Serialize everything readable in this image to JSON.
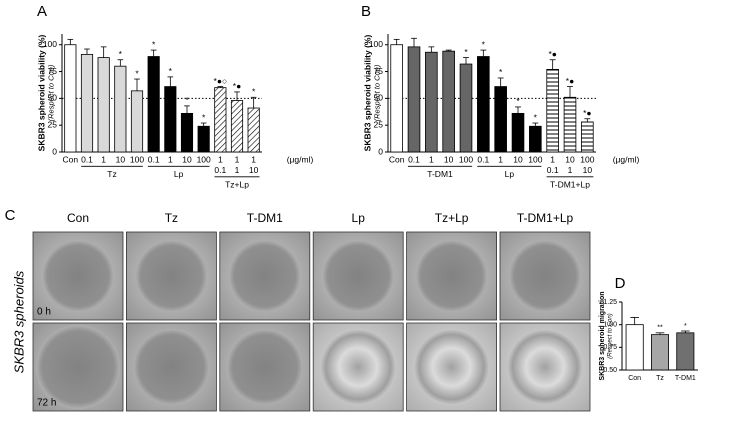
{
  "chart_data": [
    {
      "type": "bar",
      "panel_label": "A",
      "ylabel": "SKBR3 spheroid viability (%)",
      "ysublabel": "(Respect to Con)",
      "unit": "(μg/ml)",
      "ylim": [
        0,
        110
      ],
      "yticks": [
        0,
        25,
        50,
        75,
        100
      ],
      "reference_line": 50,
      "groups": [
        {
          "categories": [
            "Con"
          ],
          "values": [
            100
          ],
          "errors": [
            5
          ],
          "annotations": [
            null
          ],
          "color": "#ffffff"
        },
        {
          "name": "Tz",
          "categories": [
            "0.1",
            "1",
            "10",
            "100"
          ],
          "values": [
            91,
            88,
            80,
            57
          ],
          "errors": [
            5,
            10,
            6,
            11
          ],
          "annotations": [
            null,
            null,
            "*",
            "*"
          ],
          "color": "#d9d9d9"
        },
        {
          "name": "Lp",
          "categories": [
            "0.1",
            "1",
            "10",
            "100"
          ],
          "values": [
            89,
            61,
            36,
            24
          ],
          "errors": [
            6,
            9,
            7,
            3
          ],
          "annotations": [
            "*",
            "*",
            "*",
            "*"
          ],
          "color": "#000000"
        },
        {
          "name": "Tz+Lp",
          "categories": [
            [
              "1",
              "0.1"
            ],
            [
              "1",
              "1"
            ],
            [
              "1",
              "10"
            ]
          ],
          "values": [
            60,
            48,
            41
          ],
          "errors": [
            1,
            8,
            10
          ],
          "annotations": [
            "*●○",
            "*●",
            "*"
          ],
          "color": "#ffffff",
          "pattern": "diagonal"
        }
      ]
    },
    {
      "type": "bar",
      "panel_label": "B",
      "ylabel": "SKBR3 spheroid viability (%)",
      "ysublabel": "(Respect to Con)",
      "unit": "(μg/ml)",
      "ylim": [
        0,
        110
      ],
      "yticks": [
        0,
        25,
        50,
        75,
        100
      ],
      "reference_line": 50,
      "groups": [
        {
          "categories": [
            "Con"
          ],
          "values": [
            100
          ],
          "errors": [
            5
          ],
          "annotations": [
            null
          ],
          "color": "#ffffff"
        },
        {
          "name": "T-DM1",
          "categories": [
            "0.1",
            "1",
            "10",
            "100"
          ],
          "values": [
            98,
            93,
            94,
            82
          ],
          "errors": [
            8,
            5,
            1,
            6
          ],
          "annotations": [
            null,
            null,
            null,
            "*"
          ],
          "color": "#666666"
        },
        {
          "name": "Lp",
          "categories": [
            "0.1",
            "1",
            "10",
            "100"
          ],
          "values": [
            89,
            61,
            36,
            24
          ],
          "errors": [
            6,
            8,
            6,
            3
          ],
          "annotations": [
            "*",
            "*",
            "*",
            "*"
          ],
          "color": "#000000"
        },
        {
          "name": "T-DM1+Lp",
          "categories": [
            [
              "1",
              "0.1"
            ],
            [
              "10",
              "1"
            ],
            [
              "100",
              "10"
            ]
          ],
          "values": [
            77,
            51,
            28
          ],
          "errors": [
            9,
            10,
            3
          ],
          "annotations": [
            "*●",
            "*●",
            "*●"
          ],
          "color": "#ffffff",
          "pattern": "horizontal"
        }
      ]
    },
    {
      "type": "bar",
      "panel_label": "D",
      "ylabel": "SKBR3 spheroid migration",
      "ysublabel": "(Respect to Con)",
      "ylim": [
        0.5,
        1.25
      ],
      "yticks": [
        {
          "value": 0.5,
          "label": "0.50"
        },
        {
          "value": 0.75,
          "label": "0.75"
        },
        {
          "value": 1.0,
          "label": "1.00"
        },
        {
          "value": 1.25,
          "label": "1.25"
        }
      ],
      "groups": [
        {
          "categories": [
            "Con"
          ],
          "values": [
            1.0
          ],
          "errors": [
            0.08
          ],
          "annotations": [
            null
          ],
          "color": "#ffffff"
        },
        {
          "categories": [
            "Tz"
          ],
          "values": [
            0.89
          ],
          "errors": [
            0.02
          ],
          "annotations": [
            "**"
          ],
          "color": "#a6a6a6"
        },
        {
          "categories": [
            "T-DM1"
          ],
          "values": [
            0.91
          ],
          "errors": [
            0.02
          ],
          "annotations": [
            "*"
          ],
          "color": "#707070"
        }
      ]
    }
  ],
  "images": {
    "panel_label": "C",
    "side_label": "SKBR3 spheroids",
    "columns": [
      "Con",
      "Tz",
      "T-DM1",
      "Lp",
      "Tz+Lp",
      "T-DM1+Lp"
    ],
    "rows": [
      "0 h",
      "72 h"
    ]
  }
}
